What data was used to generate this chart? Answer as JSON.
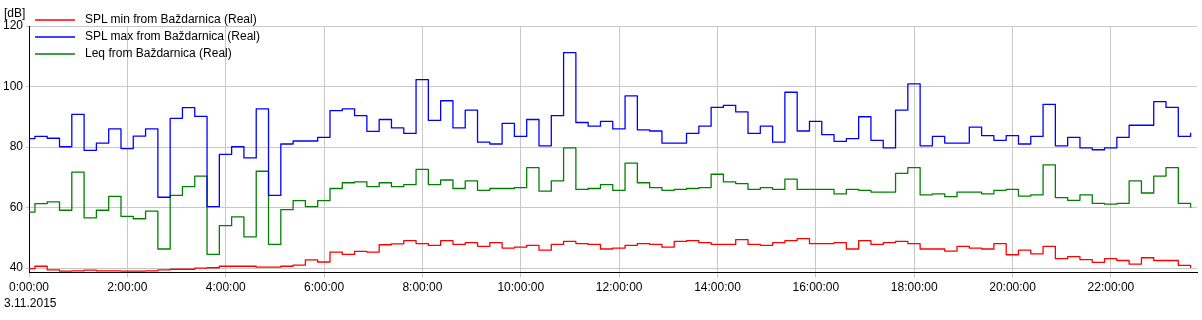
{
  "chart_data": {
    "type": "step",
    "ylabel": "[dB]",
    "annotations": [
      "3.11.2015"
    ],
    "x": [
      0,
      0.12,
      0.37,
      0.62,
      0.87,
      1.12,
      1.37,
      1.62,
      1.87,
      2.12,
      2.37,
      2.62,
      2.87,
      3.12,
      3.37,
      3.62,
      3.87,
      4.12,
      4.37,
      4.62,
      4.87,
      5.12,
      5.37,
      5.62,
      5.87,
      6.12,
      6.37,
      6.62,
      6.87,
      7.12,
      7.37,
      7.62,
      7.87,
      8.12,
      8.37,
      8.62,
      8.87,
      9.12,
      9.37,
      9.62,
      9.87,
      10.12,
      10.37,
      10.62,
      10.87,
      11.12,
      11.37,
      11.62,
      11.87,
      12.12,
      12.37,
      12.62,
      12.87,
      13.12,
      13.37,
      13.62,
      13.87,
      14.12,
      14.37,
      14.62,
      14.87,
      15.12,
      15.37,
      15.62,
      15.87,
      16.12,
      16.37,
      16.62,
      16.87,
      17.12,
      17.37,
      17.62,
      17.87,
      18.12,
      18.37,
      18.62,
      18.87,
      19.12,
      19.37,
      19.62,
      19.87,
      20.12,
      20.37,
      20.62,
      20.87,
      21.12,
      21.37,
      21.62,
      21.87,
      22.12,
      22.37,
      22.62,
      22.87,
      23.12,
      23.37,
      23.62
    ],
    "series": [
      {
        "name": "SPL min from Baždarnica (Real)",
        "color": "#ff0000",
        "values": [
          39.8,
          40.6,
          39.4,
          39.0,
          39.1,
          39.3,
          39.1,
          39.1,
          39.0,
          39.0,
          39.1,
          39.4,
          39.6,
          39.6,
          40.0,
          40.1,
          40.6,
          40.6,
          40.6,
          40.3,
          40.3,
          40.6,
          41.0,
          42.7,
          42.0,
          45.3,
          44.5,
          45.5,
          45.3,
          47.7,
          48.0,
          49.1,
          48.1,
          47.5,
          49.1,
          47.8,
          48.4,
          47.2,
          48.4,
          46.6,
          46.9,
          47.5,
          45.9,
          47.8,
          48.8,
          48.1,
          47.8,
          46.3,
          46.6,
          47.5,
          48.1,
          47.8,
          46.9,
          48.8,
          49.1,
          48.4,
          47.8,
          47.8,
          49.4,
          47.8,
          47.5,
          48.4,
          49.1,
          49.7,
          48.1,
          48.1,
          48.4,
          46.3,
          49.1,
          47.8,
          48.4,
          48.8,
          48.1,
          46.3,
          46.3,
          45.6,
          47.2,
          46.6,
          46.3,
          48.1,
          44.4,
          45.9,
          44.7,
          47.2,
          43.1,
          43.8,
          42.8,
          41.9,
          43.1,
          42.5,
          41.3,
          43.4,
          42.5,
          42.5,
          40.9,
          40.0
        ]
      },
      {
        "name": "SPL max from Baždarnica (Real)",
        "color": "#0000ff",
        "values": [
          82.8,
          83.5,
          82.9,
          80.1,
          90.8,
          78.9,
          81.3,
          86.0,
          79.5,
          83.6,
          86.0,
          63.4,
          89.5,
          93.0,
          90.1,
          60.3,
          77.6,
          80.1,
          76.4,
          92.6,
          64.0,
          81.0,
          82.0,
          82.0,
          83.2,
          92.0,
          92.6,
          90.4,
          85.2,
          89.1,
          86.3,
          84.5,
          102.3,
          88.8,
          95.3,
          86.3,
          92.2,
          81.6,
          81.0,
          87.8,
          83.5,
          89.1,
          80.4,
          90.4,
          111.2,
          88.1,
          86.9,
          88.5,
          86.0,
          96.9,
          85.7,
          85.3,
          81.3,
          81.3,
          84.5,
          86.9,
          93.1,
          93.8,
          91.6,
          84.5,
          86.9,
          81.6,
          98.1,
          85.3,
          88.5,
          84.1,
          81.9,
          82.8,
          90.0,
          82.2,
          79.7,
          92.2,
          100.9,
          80.4,
          83.5,
          81.3,
          81.3,
          86.6,
          83.8,
          82.2,
          83.8,
          81.0,
          83.5,
          94.1,
          80.4,
          83.2,
          79.7,
          79.1,
          79.7,
          83.2,
          87.2,
          87.2,
          95.0,
          93.1,
          83.5,
          84.7
        ]
      },
      {
        "name": "Leq from Baždarnica (Real)",
        "color": "#008000",
        "values": [
          58.5,
          61.3,
          61.9,
          59.1,
          71.7,
          56.6,
          59.1,
          63.7,
          57.1,
          56.3,
          58.8,
          46.3,
          64.0,
          66.9,
          70.4,
          44.5,
          54.0,
          56.9,
          50.3,
          72.0,
          47.8,
          59.3,
          62.3,
          60.3,
          62.3,
          66.3,
          68.2,
          68.5,
          66.9,
          68.2,
          66.9,
          67.6,
          72.6,
          67.6,
          69.1,
          66.3,
          68.8,
          65.7,
          66.3,
          66.3,
          66.6,
          73.2,
          65.4,
          68.8,
          79.7,
          66.0,
          66.3,
          67.6,
          65.7,
          74.7,
          68.2,
          66.6,
          65.7,
          66.0,
          66.3,
          66.6,
          71.0,
          68.5,
          67.9,
          66.0,
          66.6,
          66.0,
          69.4,
          66.0,
          66.0,
          66.0,
          64.5,
          66.0,
          65.7,
          65.1,
          65.1,
          71.3,
          73.2,
          64.2,
          64.5,
          63.6,
          65.1,
          65.1,
          64.5,
          65.7,
          66.0,
          63.8,
          64.2,
          74.1,
          63.3,
          62.4,
          64.2,
          61.4,
          61.1,
          61.4,
          68.8,
          64.8,
          70.4,
          73.2,
          61.4,
          59.9
        ]
      }
    ],
    "xlim": [
      0,
      23.75
    ],
    "xticks": [
      {
        "value": 0,
        "label": "0:00:00"
      },
      {
        "value": 2,
        "label": "2:00:00"
      },
      {
        "value": 4,
        "label": "4:00:00"
      },
      {
        "value": 6,
        "label": "6:00:00"
      },
      {
        "value": 8,
        "label": "8:00:00"
      },
      {
        "value": 10,
        "label": "10:00:00"
      },
      {
        "value": 12,
        "label": "12:00:00"
      },
      {
        "value": 14,
        "label": "14:00:00"
      },
      {
        "value": 16,
        "label": "16:00:00"
      },
      {
        "value": 18,
        "label": "18:00:00"
      },
      {
        "value": 20,
        "label": "20:00:00"
      },
      {
        "value": 22,
        "label": "22:00:00"
      }
    ],
    "ylim": [
      38.5,
      120
    ],
    "yticks": [
      40,
      60,
      80,
      100,
      120
    ],
    "grid": true,
    "legend": "top left",
    "line_style": "solid"
  }
}
